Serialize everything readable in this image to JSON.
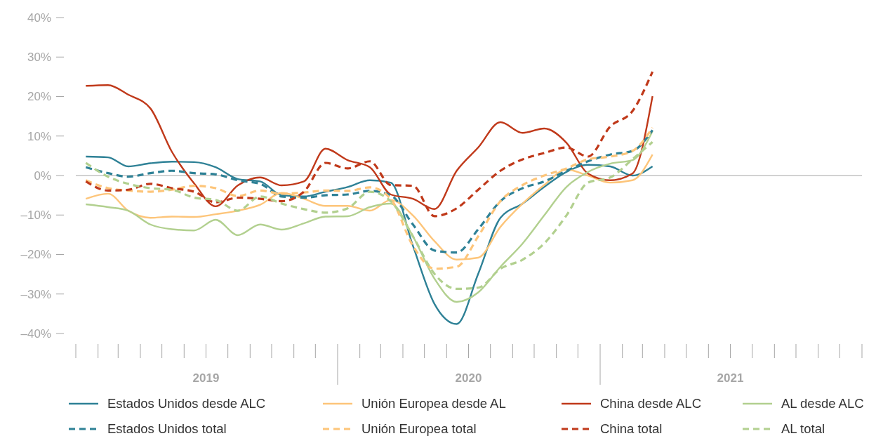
{
  "chart_data": {
    "type": "line",
    "x": [
      "2019-01-15",
      "2019-02-15",
      "2019-03-15",
      "2019-04-15",
      "2019-05-15",
      "2019-06-15",
      "2019-07-15",
      "2019-08-15",
      "2019-09-15",
      "2019-10-15",
      "2019-11-15",
      "2019-12-15",
      "2020-01-15",
      "2020-02-15",
      "2020-03-15",
      "2020-04-15",
      "2020-05-15",
      "2020-06-15",
      "2020-07-15",
      "2020-08-15",
      "2020-09-15",
      "2020-10-15",
      "2020-11-15",
      "2020-12-15",
      "2021-01-15",
      "2021-02-15",
      "2021-03-15"
    ],
    "xlim": [
      "2019-01-01",
      "2022-01-01"
    ],
    "xticks": [
      {
        "value": "2019-07-01",
        "label": "2019"
      },
      {
        "value": "2020-07-01",
        "label": "2020"
      },
      {
        "value": "2021-07-01",
        "label": "2021"
      }
    ],
    "ylim": [
      -40,
      40
    ],
    "yticks": [
      {
        "value": -40,
        "label": "–40%"
      },
      {
        "value": -30,
        "label": "–30%"
      },
      {
        "value": -20,
        "label": "–20%"
      },
      {
        "value": -10,
        "label": "–10%"
      },
      {
        "value": 0,
        "label": "0%"
      },
      {
        "value": 10,
        "label": "10%"
      },
      {
        "value": 20,
        "label": "20%"
      },
      {
        "value": 30,
        "label": "30%"
      },
      {
        "value": 40,
        "label": "40%"
      }
    ],
    "ref_lines": [
      {
        "axis": "y",
        "value": 0,
        "color": "#a6a6a6"
      }
    ],
    "grid": false,
    "legend": "bottom",
    "marker": "none",
    "series": [
      {
        "name": "Estados Unidos desde ALC",
        "color": "#2e8196",
        "line_style": "solid",
        "values": [
          4.8,
          4.6,
          2.3,
          3.1,
          3.5,
          3.4,
          2.1,
          -0.9,
          -1.5,
          -5.0,
          -5.3,
          -4.1,
          -2.9,
          -1.2,
          -1.8,
          -17.8,
          -32.5,
          -37.6,
          -24.9,
          -10.7,
          -7.1,
          -2.9,
          0.9,
          2.7,
          2.3,
          0,
          2.3
        ]
      },
      {
        "name": "Unión Europea desde AL",
        "color": "#fdc57a",
        "line_style": "solid",
        "values": [
          -5.9,
          -4.6,
          -8.9,
          -10.7,
          -10.4,
          -10.5,
          -9.8,
          -8.9,
          -7.4,
          -4.4,
          -5.9,
          -7.7,
          -7.7,
          -8.9,
          -6.2,
          -10.1,
          -16.6,
          -21.3,
          -20.8,
          -13.0,
          -7.1,
          -2.4,
          1.5,
          0,
          -1.8,
          -1.2,
          5.3
        ]
      },
      {
        "name": "China desde ALC",
        "color": "#c0391a",
        "line_style": "solid",
        "values": [
          22.7,
          22.9,
          20.5,
          17,
          6,
          -2,
          -7.8,
          -2.5,
          -0.5,
          -2.5,
          -1.5,
          6.8,
          3.9,
          2.1,
          -4.8,
          -5.9,
          -8.5,
          1.2,
          7.1,
          13.5,
          10.8,
          11.9,
          8.3,
          0.5,
          -1.2,
          0.5,
          20.1
        ]
      },
      {
        "name": "AL desde ALC",
        "color": "#b2d08f",
        "line_style": "solid",
        "values": [
          -7.3,
          -8.0,
          -8.9,
          -12.4,
          -13.6,
          -13.9,
          -11.2,
          -15.1,
          -12.4,
          -13.7,
          -12.1,
          -10.4,
          -10.3,
          -8.0,
          -7.1,
          -15.4,
          -26.1,
          -32.0,
          -29.6,
          -23.1,
          -17.2,
          -10.1,
          -2.9,
          0.9,
          3.0,
          3.9,
          11.2
        ]
      },
      {
        "name": "Estados Unidos total",
        "color": "#2e8196",
        "line_style": "dashed",
        "values": [
          2.1,
          0.6,
          -0.3,
          0.6,
          1.2,
          0.6,
          0.3,
          -1.2,
          -2.1,
          -5.3,
          -5.6,
          -5.0,
          -4.8,
          -3.9,
          -5.0,
          -12.4,
          -19.0,
          -19.5,
          -13.6,
          -6.5,
          -3.2,
          -1.5,
          1.2,
          3.6,
          5.3,
          6.2,
          11.5
        ]
      },
      {
        "name": "Unión Europea total",
        "color": "#fdc57a",
        "line_style": "dashed",
        "values": [
          -1.2,
          -3.2,
          -3.8,
          -4.1,
          -3.6,
          -2.6,
          -3.2,
          -5.2,
          -3.8,
          -4.6,
          -4.3,
          -3.8,
          -3.9,
          -3.0,
          -5.9,
          -17.8,
          -23.6,
          -23.1,
          -15.4,
          -6.5,
          -2.4,
          0,
          1.8,
          4.1,
          4.8,
          6.2,
          12.1
        ]
      },
      {
        "name": "China total",
        "color": "#c0391a",
        "line_style": "dashed",
        "values": [
          -1.5,
          -3.8,
          -3.6,
          -2.1,
          -3.2,
          -4.1,
          -6.8,
          -5.6,
          -5.9,
          -6.5,
          -4.1,
          3.2,
          1.8,
          3.6,
          -2.4,
          -2.6,
          -10.3,
          -8.3,
          -3.6,
          1.2,
          4.1,
          5.7,
          7.1,
          4.8,
          12.4,
          16.3,
          26.3
        ]
      },
      {
        "name": "AL total",
        "color": "#b2d08f",
        "line_style": "dashed",
        "values": [
          3.2,
          -0.3,
          -2.1,
          -3.2,
          -3.6,
          -5.6,
          -6.2,
          -8.9,
          -5.3,
          -7.1,
          -8.5,
          -9.4,
          -8.3,
          -4.1,
          -6.5,
          -15.4,
          -24.9,
          -28.7,
          -28.4,
          -23.6,
          -21.3,
          -17.2,
          -10.1,
          -1.8,
          -0.5,
          4.1,
          8.5
        ]
      }
    ]
  }
}
